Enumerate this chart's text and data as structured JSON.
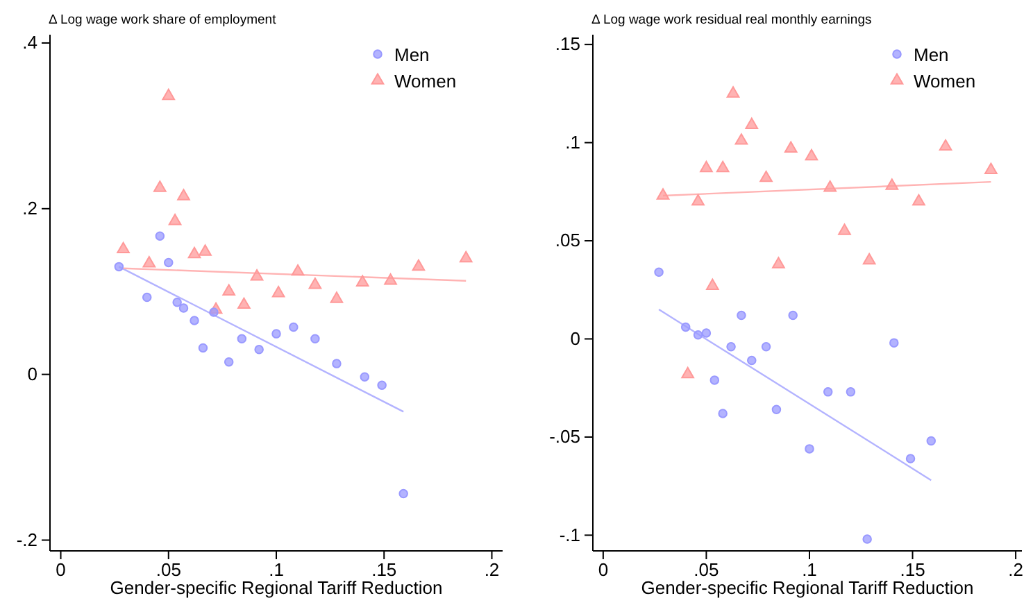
{
  "chart_data": [
    {
      "type": "scatter",
      "ylabel": "Δ Log wage work share of employment",
      "xlabel": "Gender-specific Regional Tariff Reduction",
      "xlim": [
        -0.005,
        0.205
      ],
      "ylim": [
        -0.213,
        0.41
      ],
      "xticks": [
        0,
        {
          "value": 0.05,
          "label": ".05"
        },
        {
          "value": 0.1,
          "label": ".1"
        },
        {
          "value": 0.15,
          "label": ".15"
        },
        {
          "value": 0.2,
          "label": ".2"
        }
      ],
      "yticks": [
        {
          "value": -0.2,
          "label": "-.2"
        },
        0,
        {
          "value": 0.2,
          "label": ".2"
        },
        {
          "value": 0.4,
          "label": ".4"
        }
      ],
      "grid": false,
      "legend": "top right",
      "series": [
        {
          "name": "Men",
          "marker": "circle",
          "color": "#9999ff",
          "x": [
            0.027,
            0.04,
            0.046,
            0.05,
            0.054,
            0.057,
            0.062,
            0.066,
            0.071,
            0.078,
            0.084,
            0.092,
            0.1,
            0.108,
            0.118,
            0.128,
            0.141,
            0.149,
            0.159
          ],
          "values": [
            0.13,
            0.093,
            0.167,
            0.135,
            0.087,
            0.08,
            0.065,
            0.032,
            0.075,
            0.015,
            0.043,
            0.03,
            0.049,
            0.057,
            0.043,
            0.013,
            -0.003,
            -0.013,
            -0.144
          ]
        },
        {
          "name": "Women",
          "marker": "triangle",
          "color": "#ff9999",
          "x": [
            0.029,
            0.041,
            0.046,
            0.05,
            0.053,
            0.057,
            0.062,
            0.067,
            0.072,
            0.078,
            0.085,
            0.091,
            0.101,
            0.11,
            0.118,
            0.128,
            0.14,
            0.153,
            0.166,
            0.188
          ],
          "values": [
            0.151,
            0.134,
            0.225,
            0.336,
            0.185,
            0.215,
            0.145,
            0.148,
            0.078,
            0.1,
            0.084,
            0.118,
            0.098,
            0.124,
            0.108,
            0.091,
            0.111,
            0.113,
            0.13,
            0.14
          ]
        },
        {
          "type": "line",
          "color": "#b3b3ff",
          "x": [
            0.027,
            0.159
          ],
          "values": [
            0.13,
            -0.045
          ]
        },
        {
          "type": "line",
          "color": "#ffb3b3",
          "x": [
            0.029,
            0.188
          ],
          "values": [
            0.128,
            0.113
          ]
        }
      ]
    },
    {
      "type": "scatter",
      "ylabel": "Δ Log wage work residual real monthly earnings",
      "xlabel": "Gender-specific Regional Tariff Reduction",
      "xlim": [
        -0.005,
        0.203
      ],
      "ylim": [
        -0.108,
        0.155
      ],
      "xticks": [
        0,
        {
          "value": 0.05,
          "label": ".05"
        },
        {
          "value": 0.1,
          "label": ".1"
        },
        {
          "value": 0.15,
          "label": ".15"
        },
        {
          "value": 0.2,
          "label": ".2"
        }
      ],
      "yticks": [
        {
          "value": -0.1,
          "label": "-.1"
        },
        {
          "value": -0.05,
          "label": "-.05"
        },
        0,
        {
          "value": 0.05,
          "label": ".05"
        },
        {
          "value": 0.1,
          "label": ".1"
        },
        {
          "value": 0.15,
          "label": ".15"
        }
      ],
      "grid": false,
      "legend": "top right",
      "series": [
        {
          "name": "Men",
          "marker": "circle",
          "color": "#9999ff",
          "x": [
            0.027,
            0.04,
            0.046,
            0.05,
            0.054,
            0.058,
            0.062,
            0.067,
            0.072,
            0.079,
            0.084,
            0.092,
            0.1,
            0.109,
            0.12,
            0.128,
            0.141,
            0.149,
            0.159
          ],
          "values": [
            0.034,
            0.006,
            0.002,
            0.003,
            -0.021,
            -0.038,
            -0.004,
            0.012,
            -0.011,
            -0.004,
            -0.036,
            0.012,
            -0.056,
            -0.027,
            -0.027,
            -0.102,
            -0.002,
            -0.061,
            -0.052
          ]
        },
        {
          "name": "Women",
          "marker": "triangle",
          "color": "#ff9999",
          "x": [
            0.029,
            0.041,
            0.046,
            0.05,
            0.053,
            0.058,
            0.063,
            0.067,
            0.072,
            0.079,
            0.085,
            0.091,
            0.101,
            0.11,
            0.117,
            0.129,
            0.14,
            0.153,
            0.166,
            0.188
          ],
          "values": [
            0.073,
            -0.018,
            0.07,
            0.087,
            0.027,
            0.087,
            0.125,
            0.101,
            0.109,
            0.082,
            0.038,
            0.097,
            0.093,
            0.077,
            0.055,
            0.04,
            0.078,
            0.07,
            0.098,
            0.086
          ]
        },
        {
          "type": "line",
          "color": "#b3b3ff",
          "x": [
            0.027,
            0.159
          ],
          "values": [
            0.015,
            -0.072
          ]
        },
        {
          "type": "line",
          "color": "#ffb3b3",
          "x": [
            0.029,
            0.188
          ],
          "values": [
            0.073,
            0.08
          ]
        }
      ]
    }
  ]
}
